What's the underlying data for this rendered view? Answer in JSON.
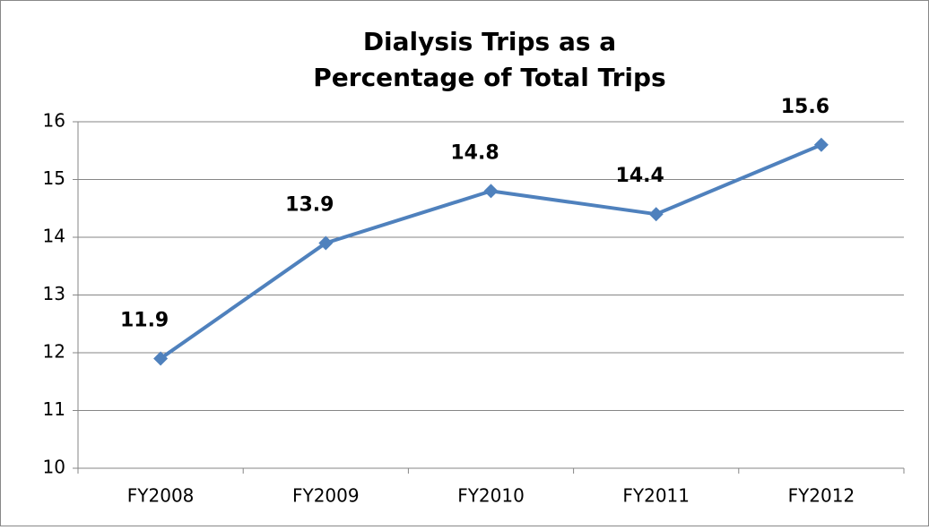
{
  "chart_data": {
    "type": "line",
    "title": [
      "Dialysis Trips as a",
      "Percentage of Total Trips"
    ],
    "categories": [
      "FY2008",
      "FY2009",
      "FY2010",
      "FY2011",
      "FY2012"
    ],
    "series": [
      {
        "name": "Dialysis Trips",
        "color": "#4f81bd",
        "values": [
          11.9,
          13.9,
          14.8,
          14.4,
          15.6
        ]
      }
    ],
    "ylim": [
      10,
      16
    ],
    "yticks": [
      10,
      11,
      12,
      13,
      14,
      15,
      16
    ],
    "grid": true,
    "legend": false
  }
}
